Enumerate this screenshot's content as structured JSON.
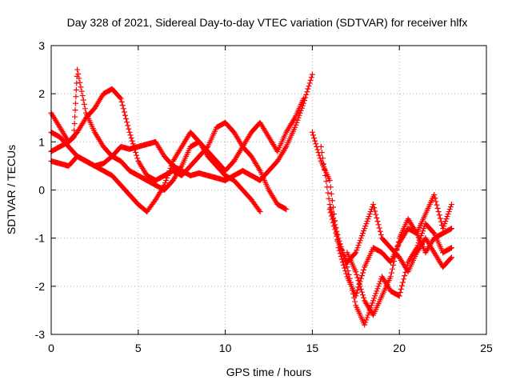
{
  "chart_data": {
    "type": "scatter",
    "title": "Day 328 of 2021, Sidereal Day-to-day VTEC variation (SDTVAR) for receiver hlfx",
    "xlabel": "GPS time / hours",
    "ylabel": "SDTVAR / TECUs",
    "xlim": [
      0,
      25
    ],
    "ylim": [
      -3,
      3
    ],
    "xticks": [
      "0",
      "5",
      "10",
      "15",
      "20",
      "25"
    ],
    "yticks": [
      "-3",
      "-2",
      "-1",
      "0",
      "1",
      "2",
      "3"
    ],
    "grid": true,
    "legend": "none",
    "marker": "plus",
    "series": [
      {
        "name": "trace-1",
        "color": "#ff0000",
        "x": [
          0.0,
          0.5,
          1.0,
          1.5,
          2.0,
          2.5,
          3.0,
          3.5,
          4.0,
          4.5,
          5.0,
          5.5,
          6.0,
          6.5,
          7.0,
          7.5,
          8.0,
          8.5,
          9.0,
          9.5,
          10.0,
          10.5,
          11.0,
          11.5,
          12.0,
          12.5,
          13.0,
          13.5,
          14.0,
          14.5,
          15.0
        ],
        "y": [
          0.6,
          0.55,
          0.5,
          0.7,
          0.6,
          0.5,
          0.55,
          0.7,
          0.9,
          0.85,
          0.9,
          0.95,
          1.0,
          0.7,
          0.5,
          0.4,
          0.3,
          0.35,
          0.3,
          0.25,
          0.2,
          0.3,
          0.4,
          0.3,
          0.2,
          0.4,
          0.6,
          0.9,
          1.3,
          1.8,
          2.4
        ]
      },
      {
        "name": "trace-2",
        "color": "#ff0000",
        "x": [
          0.0,
          0.5,
          1.0,
          1.3,
          1.5,
          2.0,
          2.5,
          3.0,
          3.5,
          4.0,
          4.5,
          5.0,
          5.5,
          6.0,
          6.5,
          7.0,
          7.5,
          8.0,
          8.5,
          9.0,
          9.5,
          10.0,
          10.5,
          11.0,
          11.5,
          12.0
        ],
        "y": [
          1.6,
          1.3,
          1.0,
          1.1,
          2.5,
          1.6,
          1.2,
          0.9,
          0.7,
          0.6,
          0.4,
          0.3,
          0.2,
          0.1,
          0.0,
          0.2,
          0.5,
          0.9,
          1.0,
          0.7,
          0.5,
          0.3,
          0.2,
          0.0,
          -0.2,
          -0.45
        ]
      },
      {
        "name": "trace-3",
        "color": "#ff0000",
        "x": [
          0.0,
          0.5,
          1.0,
          1.5,
          2.0,
          2.5,
          3.0,
          3.5,
          4.0,
          4.5,
          5.0,
          5.5,
          6.0,
          6.5,
          7.0,
          7.5,
          8.0,
          8.5,
          9.0,
          9.5,
          10.0,
          10.5,
          11.0,
          11.5,
          12.0,
          12.5,
          13.0,
          13.5
        ],
        "y": [
          0.8,
          0.9,
          1.0,
          1.2,
          1.5,
          1.7,
          2.0,
          2.1,
          1.9,
          1.2,
          0.6,
          0.3,
          0.2,
          0.3,
          0.4,
          0.3,
          0.5,
          0.7,
          0.9,
          1.3,
          1.4,
          1.2,
          0.9,
          0.7,
          0.4,
          0.0,
          -0.3,
          -0.4
        ]
      },
      {
        "name": "trace-4",
        "color": "#ff0000",
        "x": [
          0.0,
          0.5,
          1.0,
          1.5,
          2.0,
          2.5,
          3.0,
          3.5,
          4.0,
          4.5,
          5.0,
          5.5,
          6.0,
          6.5,
          7.0,
          7.5,
          8.0,
          8.5,
          9.0,
          9.5,
          10.0,
          10.5,
          11.0,
          11.5,
          12.0,
          12.5,
          13.0,
          13.5,
          14.0,
          14.5
        ],
        "y": [
          1.2,
          1.1,
          0.9,
          0.7,
          0.6,
          0.5,
          0.4,
          0.3,
          0.1,
          -0.1,
          -0.3,
          -0.45,
          -0.2,
          0.1,
          0.6,
          0.9,
          1.2,
          1.0,
          0.8,
          0.6,
          0.4,
          0.6,
          0.9,
          1.2,
          1.4,
          1.1,
          0.8,
          1.2,
          1.5,
          1.9
        ]
      },
      {
        "name": "trace-5",
        "color": "#ff0000",
        "x": [
          15.0,
          15.5,
          16.0,
          16.5,
          17.0,
          17.5,
          18.0,
          18.5,
          19.0,
          19.5,
          20.0,
          20.5,
          21.0,
          21.5,
          22.0,
          22.5,
          23.0
        ],
        "y": [
          1.2,
          0.6,
          0.2,
          -1.2,
          -1.8,
          -2.2,
          -1.6,
          -1.2,
          -1.3,
          -1.5,
          -1.1,
          -0.8,
          -0.9,
          -0.5,
          -0.1,
          -0.8,
          -0.3
        ]
      },
      {
        "name": "trace-6",
        "color": "#ff0000",
        "x": [
          15.5,
          16.0,
          16.5,
          17.0,
          17.5,
          18.0,
          18.5,
          19.0,
          19.5,
          20.0,
          20.5,
          21.0,
          21.5,
          22.0,
          22.5,
          23.0
        ],
        "y": [
          0.9,
          -0.3,
          -1.0,
          -1.6,
          -2.4,
          -2.8,
          -2.3,
          -1.8,
          -2.1,
          -2.2,
          -1.5,
          -1.2,
          -0.7,
          -0.9,
          -1.3,
          -1.2
        ]
      },
      {
        "name": "trace-7",
        "color": "#ff0000",
        "x": [
          16.0,
          16.5,
          17.0,
          17.5,
          18.0,
          18.5,
          19.0,
          19.5,
          20.0,
          20.5,
          21.0,
          21.5,
          22.0,
          22.5,
          23.0
        ],
        "y": [
          -0.4,
          -1.1,
          -1.5,
          -1.3,
          -0.8,
          -0.3,
          -1.0,
          -1.2,
          -1.4,
          -1.7,
          -1.3,
          -1.0,
          -1.3,
          -1.6,
          -1.4
        ]
      },
      {
        "name": "trace-8",
        "color": "#ff0000",
        "x": [
          17.0,
          17.5,
          18.0,
          18.5,
          19.0,
          19.5,
          20.0,
          20.5,
          21.0,
          21.5,
          22.0,
          22.5,
          23.0
        ],
        "y": [
          -1.3,
          -1.7,
          -2.3,
          -2.6,
          -2.2,
          -1.8,
          -1.0,
          -0.6,
          -0.9,
          -1.3,
          -1.0,
          -0.9,
          -0.8
        ]
      }
    ]
  }
}
